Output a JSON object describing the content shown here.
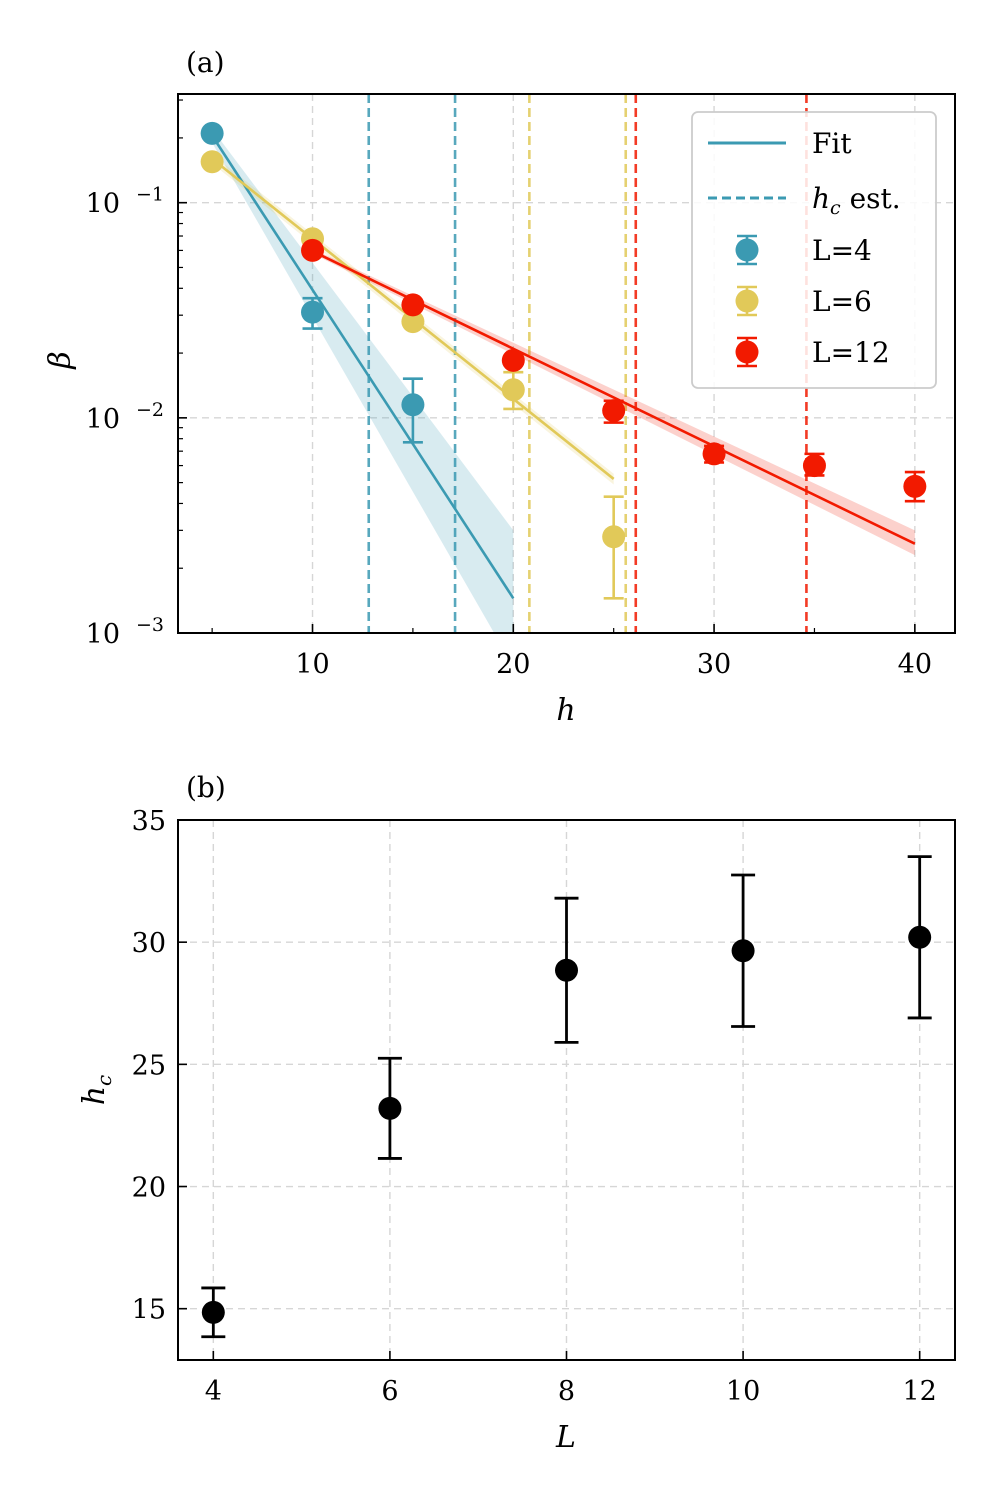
{
  "chart_data": [
    {
      "type": "scatter",
      "panel_label": "(a)",
      "xlabel": "h",
      "ylabel": "β",
      "yscale": "log",
      "xlim": [
        3.3,
        42
      ],
      "ylim": [
        0.001,
        0.32
      ],
      "xticks": [
        10,
        20,
        30,
        40
      ],
      "xtick_labels": [
        "10",
        "20",
        "30",
        "40"
      ],
      "yticks": [
        0.001,
        0.01,
        0.1
      ],
      "ytick_labels": [
        {
          "base": "10",
          "exp": "−3"
        },
        {
          "base": "10",
          "exp": "−2"
        },
        {
          "base": "10",
          "exp": "−1"
        }
      ],
      "legend": {
        "position": "top-right",
        "fit_label": "Fit",
        "hc_label_main": "h",
        "hc_label_sub": "c",
        "hc_label_rest": " est."
      },
      "series": [
        {
          "name": "L=4",
          "color": "#3b9ab2",
          "points": [
            {
              "x": 5,
              "y": 0.21,
              "ylo": 0.21,
              "yhi": 0.21
            },
            {
              "x": 10,
              "y": 0.031,
              "ylo": 0.026,
              "yhi": 0.036
            },
            {
              "x": 15,
              "y": 0.0115,
              "ylo": 0.0077,
              "yhi": 0.0152
            }
          ],
          "fit": {
            "x": [
              5,
              20
            ],
            "y": [
              0.205,
              0.00145
            ]
          },
          "band": {
            "x": [
              5,
              20
            ],
            "ylo": [
              0.19,
              0.0007
            ],
            "yhi": [
              0.22,
              0.003
            ]
          },
          "hc_lines": [
            12.8,
            17.1
          ]
        },
        {
          "name": "L=6",
          "color": "#e1c959",
          "points": [
            {
              "x": 5,
              "y": 0.155,
              "ylo": 0.155,
              "yhi": 0.155
            },
            {
              "x": 10,
              "y": 0.068,
              "ylo": 0.066,
              "yhi": 0.07
            },
            {
              "x": 15,
              "y": 0.028,
              "ylo": 0.027,
              "yhi": 0.029
            },
            {
              "x": 20,
              "y": 0.0135,
              "ylo": 0.011,
              "yhi": 0.0163
            },
            {
              "x": 25,
              "y": 0.0028,
              "ylo": 0.00145,
              "yhi": 0.0043
            }
          ],
          "fit": {
            "x": [
              5,
              25
            ],
            "y": [
              0.16,
              0.0052
            ]
          },
          "band": {
            "x": [
              5,
              25
            ],
            "ylo": [
              0.152,
              0.0049
            ],
            "yhi": [
              0.168,
              0.0055
            ]
          },
          "hc_lines": [
            20.8,
            25.6
          ]
        },
        {
          "name": "L=12",
          "color": "#f21a00",
          "points": [
            {
              "x": 10,
              "y": 0.06,
              "ylo": 0.06,
              "yhi": 0.06
            },
            {
              "x": 15,
              "y": 0.0335,
              "ylo": 0.0335,
              "yhi": 0.0335
            },
            {
              "x": 20,
              "y": 0.0185,
              "ylo": 0.0178,
              "yhi": 0.0192
            },
            {
              "x": 25,
              "y": 0.0108,
              "ylo": 0.0095,
              "yhi": 0.012
            },
            {
              "x": 30,
              "y": 0.0068,
              "ylo": 0.0062,
              "yhi": 0.0074
            },
            {
              "x": 35,
              "y": 0.006,
              "ylo": 0.0054,
              "yhi": 0.0068
            },
            {
              "x": 40,
              "y": 0.0048,
              "ylo": 0.0041,
              "yhi": 0.0056
            }
          ],
          "fit": {
            "x": [
              10,
              40
            ],
            "y": [
              0.0595,
              0.0026
            ]
          },
          "band": {
            "x": [
              10,
              40
            ],
            "ylo": [
              0.058,
              0.0023
            ],
            "yhi": [
              0.061,
              0.003
            ]
          },
          "hc_lines": [
            26.1,
            34.6
          ]
        }
      ]
    },
    {
      "type": "scatter",
      "panel_label": "(b)",
      "xlabel": "L",
      "ylabel_main": "h",
      "ylabel_sub": "c",
      "xlim": [
        3.6,
        12.4
      ],
      "ylim": [
        12.9,
        35
      ],
      "xticks": [
        4,
        6,
        8,
        10,
        12
      ],
      "xtick_labels": [
        "4",
        "6",
        "8",
        "10",
        "12"
      ],
      "yticks": [
        15,
        20,
        25,
        30,
        35
      ],
      "ytick_labels": [
        "15",
        "20",
        "25",
        "30",
        "35"
      ],
      "color": "#000000",
      "points": [
        {
          "x": 4,
          "y": 14.85,
          "ylo": 13.85,
          "yhi": 15.85
        },
        {
          "x": 6,
          "y": 23.2,
          "ylo": 21.15,
          "yhi": 25.25
        },
        {
          "x": 8,
          "y": 28.85,
          "ylo": 25.9,
          "yhi": 31.8
        },
        {
          "x": 10,
          "y": 29.65,
          "ylo": 26.55,
          "yhi": 32.75
        },
        {
          "x": 12,
          "y": 30.2,
          "ylo": 26.9,
          "yhi": 33.5
        }
      ]
    }
  ]
}
